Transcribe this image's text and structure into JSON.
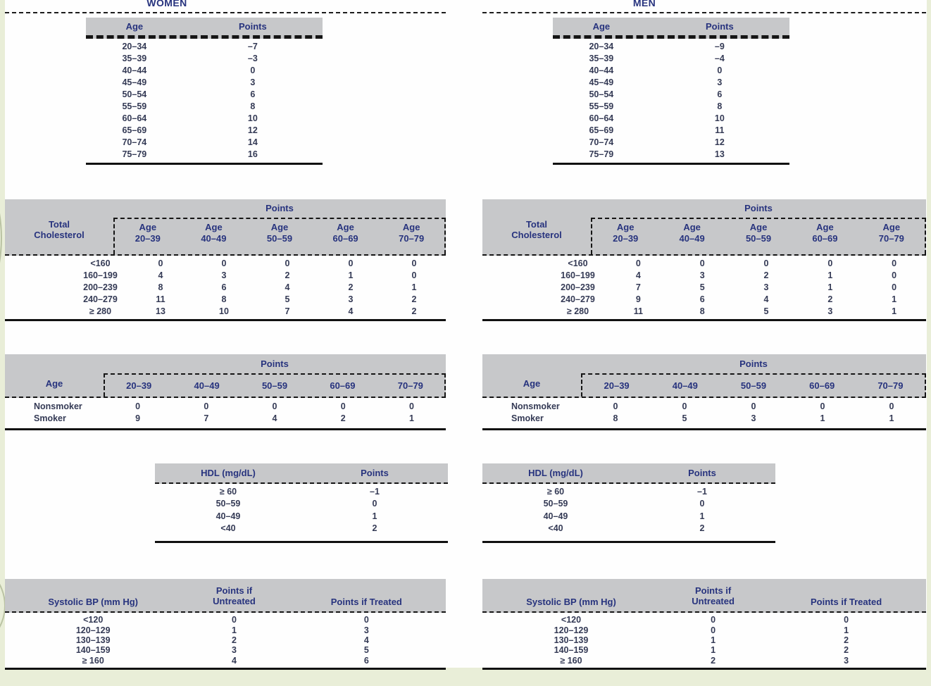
{
  "page": {
    "bg_color": "#e9eed8",
    "content_bg": "#fefefe",
    "band_color": "#c7c8ca",
    "header_text_color": "#27337e",
    "body_text_color": "#343a55"
  },
  "columns": [
    {
      "id": "women",
      "title": "WOMEN",
      "age_table": {
        "col1": "Age",
        "col2": "Points",
        "rows": [
          [
            "20–34",
            "–7"
          ],
          [
            "35–39",
            "–3"
          ],
          [
            "40–44",
            "0"
          ],
          [
            "45–49",
            "3"
          ],
          [
            "50–54",
            "6"
          ],
          [
            "55–59",
            "8"
          ],
          [
            "60–64",
            "10"
          ],
          [
            "65–69",
            "12"
          ],
          [
            "70–74",
            "14"
          ],
          [
            "75–79",
            "16"
          ]
        ]
      },
      "chol_table": {
        "points_label": "Points",
        "row_header_line1": "Total",
        "row_header_line2": "Cholesterol",
        "age_label": "Age",
        "age_ranges": [
          "20–39",
          "40–49",
          "50–59",
          "60–69",
          "70–79"
        ],
        "rows": [
          [
            "<160",
            "0",
            "0",
            "0",
            "0",
            "0"
          ],
          [
            "160–199",
            "4",
            "3",
            "2",
            "1",
            "0"
          ],
          [
            "200–239",
            "8",
            "6",
            "4",
            "2",
            "1"
          ],
          [
            "240–279",
            "11",
            "8",
            "5",
            "3",
            "2"
          ],
          [
            "≥ 280",
            "13",
            "10",
            "7",
            "4",
            "2"
          ]
        ]
      },
      "smoking_table": {
        "points_label": "Points",
        "row_header": "Age",
        "age_ranges": [
          "20–39",
          "40–49",
          "50–59",
          "60–69",
          "70–79"
        ],
        "rows": [
          [
            "Nonsmoker",
            "0",
            "0",
            "0",
            "0",
            "0"
          ],
          [
            "Smoker",
            "9",
            "7",
            "4",
            "2",
            "1"
          ]
        ]
      },
      "hdl_table": {
        "col1": "HDL (mg/dL)",
        "col2": "Points",
        "rows": [
          [
            "≥ 60",
            "–1"
          ],
          [
            "50–59",
            "0"
          ],
          [
            "40–49",
            "1"
          ],
          [
            "<40",
            "2"
          ]
        ]
      },
      "bp_table": {
        "col1": "Systolic BP (mm Hg)",
        "col2_line1": "Points if",
        "col2_line2": "Untreated",
        "col3": "Points if Treated",
        "rows": [
          [
            "<120",
            "0",
            "0"
          ],
          [
            "120–129",
            "1",
            "3"
          ],
          [
            "130–139",
            "2",
            "4"
          ],
          [
            "140–159",
            "3",
            "5"
          ],
          [
            "≥ 160",
            "4",
            "6"
          ]
        ]
      }
    },
    {
      "id": "men",
      "title": "MEN",
      "age_table": {
        "col1": "Age",
        "col2": "Points",
        "rows": [
          [
            "20–34",
            "–9"
          ],
          [
            "35–39",
            "–4"
          ],
          [
            "40–44",
            "0"
          ],
          [
            "45–49",
            "3"
          ],
          [
            "50–54",
            "6"
          ],
          [
            "55–59",
            "8"
          ],
          [
            "60–64",
            "10"
          ],
          [
            "65–69",
            "11"
          ],
          [
            "70–74",
            "12"
          ],
          [
            "75–79",
            "13"
          ]
        ]
      },
      "chol_table": {
        "points_label": "Points",
        "row_header_line1": "Total",
        "row_header_line2": "Cholesterol",
        "age_label": "Age",
        "age_ranges": [
          "20–39",
          "40–49",
          "50–59",
          "60–69",
          "70–79"
        ],
        "rows": [
          [
            "<160",
            "0",
            "0",
            "0",
            "0",
            "0"
          ],
          [
            "160–199",
            "4",
            "3",
            "2",
            "1",
            "0"
          ],
          [
            "200–239",
            "7",
            "5",
            "3",
            "1",
            "0"
          ],
          [
            "240–279",
            "9",
            "6",
            "4",
            "2",
            "1"
          ],
          [
            "≥ 280",
            "11",
            "8",
            "5",
            "3",
            "1"
          ]
        ]
      },
      "smoking_table": {
        "points_label": "Points",
        "row_header": "Age",
        "age_ranges": [
          "20–39",
          "40–49",
          "50–59",
          "60–69",
          "70–79"
        ],
        "rows": [
          [
            "Nonsmoker",
            "0",
            "0",
            "0",
            "0",
            "0"
          ],
          [
            "Smoker",
            "8",
            "5",
            "3",
            "1",
            "1"
          ]
        ]
      },
      "hdl_table": {
        "col1": "HDL (mg/dL)",
        "col2": "Points",
        "rows": [
          [
            "≥ 60",
            "–1"
          ],
          [
            "50–59",
            "0"
          ],
          [
            "40–49",
            "1"
          ],
          [
            "<40",
            "2"
          ]
        ]
      },
      "bp_table": {
        "col1": "Systolic BP (mm Hg)",
        "col2_line1": "Points if",
        "col2_line2": "Untreated",
        "col3": "Points if Treated",
        "rows": [
          [
            "<120",
            "0",
            "0"
          ],
          [
            "120–129",
            "0",
            "1"
          ],
          [
            "130–139",
            "1",
            "2"
          ],
          [
            "140–159",
            "1",
            "2"
          ],
          [
            "≥ 160",
            "2",
            "3"
          ]
        ]
      }
    }
  ]
}
